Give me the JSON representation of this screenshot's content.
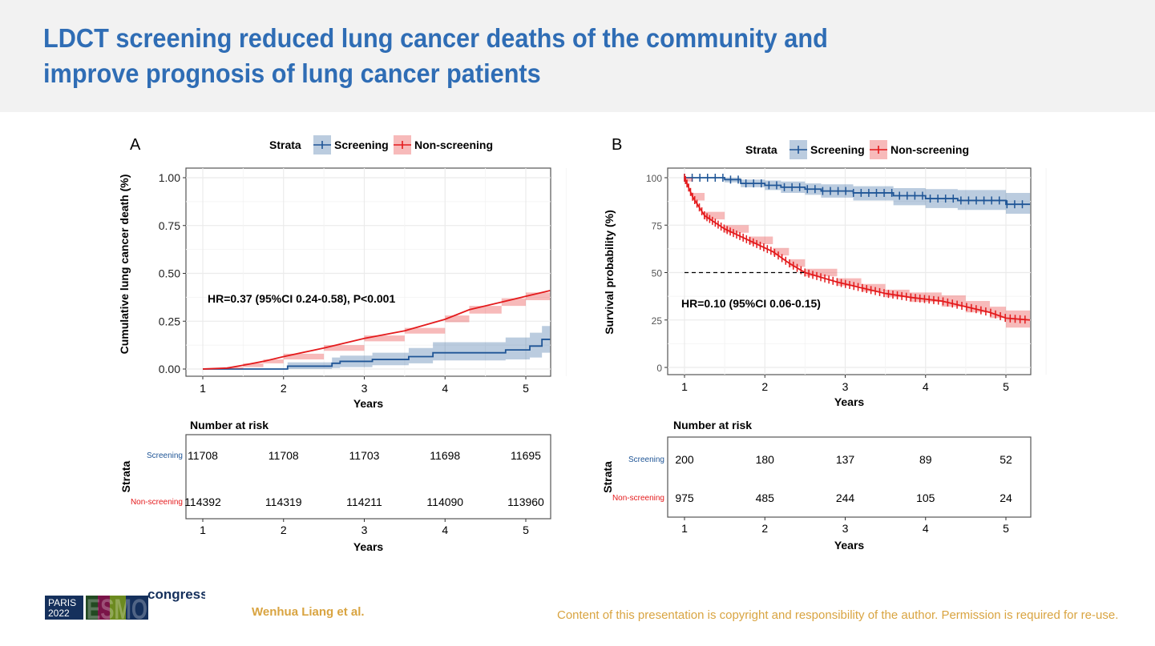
{
  "slide": {
    "title_line1": "LDCT screening reduced lung cancer deaths of the community and",
    "title_line2": "improve prognosis of lung cancer patients",
    "author": "Wenhua Liang et al.",
    "copyright": "Content of this presentation is copyright and responsibility of the author. Permission is required for re-use.",
    "logo": {
      "city": "PARIS",
      "year": "2022",
      "brand": "ESMO",
      "suffix": "congress"
    }
  },
  "colors": {
    "screening": "#1f5596",
    "non_screening": "#e41a1c",
    "title": "#2f6db5",
    "footer": "#d9a441"
  },
  "chart_data": [
    {
      "panel": "A",
      "type": "line",
      "step": true,
      "legend_title": "Strata",
      "legend_position": "top",
      "xlabel": "Years",
      "ylabel": "Cumulative lung cancer death (%)",
      "xlim": [
        0.8,
        5.3
      ],
      "ylim": [
        -0.03,
        1.05
      ],
      "xticks": [
        "1",
        "2",
        "3",
        "4",
        "5"
      ],
      "yticks": [
        "0.00",
        "0.25",
        "0.50",
        "0.75",
        "1.00"
      ],
      "grid": true,
      "annotation": "HR=0.37 (95%CI 0.24-0.58), P<0.001",
      "series": [
        {
          "name": "Screening",
          "color": "#1f5596",
          "x": [
            1,
            2.05,
            2.6,
            2.7,
            3.1,
            3.55,
            3.85,
            4.75,
            5.05,
            5.2,
            5.3
          ],
          "y": [
            0,
            0.015,
            0.03,
            0.04,
            0.05,
            0.065,
            0.085,
            0.1,
            0.12,
            0.155,
            0.155
          ],
          "lower": [
            0,
            0,
            0.005,
            0.01,
            0.02,
            0.03,
            0.045,
            0.05,
            0.06,
            0.085,
            0.085
          ],
          "upper": [
            0,
            0.035,
            0.06,
            0.07,
            0.085,
            0.11,
            0.14,
            0.165,
            0.19,
            0.225,
            0.225
          ]
        },
        {
          "name": "Non-screening",
          "color": "#e41a1c",
          "x": [
            1,
            1.3,
            1.5,
            1.75,
            2,
            2.5,
            3,
            3.5,
            4,
            4.3,
            4.7,
            5,
            5.3
          ],
          "y": [
            0,
            0.005,
            0.02,
            0.04,
            0.065,
            0.11,
            0.16,
            0.2,
            0.26,
            0.31,
            0.35,
            0.38,
            0.41
          ],
          "lower": [
            0,
            0,
            0.01,
            0.03,
            0.05,
            0.095,
            0.145,
            0.185,
            0.245,
            0.29,
            0.33,
            0.36,
            0.385
          ],
          "upper": [
            0,
            0.01,
            0.03,
            0.05,
            0.08,
            0.125,
            0.175,
            0.215,
            0.28,
            0.33,
            0.37,
            0.4,
            0.44
          ]
        }
      ],
      "risk_table": {
        "title": "Number at risk",
        "ylabel": "Strata",
        "xlabel": "Years",
        "times": [
          "1",
          "2",
          "3",
          "4",
          "5"
        ],
        "rows": [
          {
            "label": "Screening",
            "values": [
              "11708",
              "11708",
              "11703",
              "11698",
              "11695"
            ]
          },
          {
            "label": "Non-screening",
            "values": [
              "114392",
              "114319",
              "114211",
              "114090",
              "113960"
            ]
          }
        ]
      }
    },
    {
      "panel": "B",
      "type": "line",
      "step": true,
      "legend_title": "Strata",
      "legend_position": "top",
      "xlabel": "Years",
      "ylabel": "Survival probability (%)",
      "xlim": [
        0.8,
        5.3
      ],
      "ylim": [
        -2,
        105
      ],
      "xticks": [
        "1",
        "2",
        "3",
        "4",
        "5"
      ],
      "yticks": [
        "0",
        "25",
        "50",
        "75",
        "100"
      ],
      "grid": true,
      "annotation": "HR=0.10 (95%CI 0.06-0.15)",
      "median_line": {
        "y": 50,
        "x_end": 2.5
      },
      "series": [
        {
          "name": "Screening",
          "color": "#1f5596",
          "x": [
            1,
            1.5,
            1.7,
            2.0,
            2.2,
            2.5,
            2.7,
            3.1,
            3.6,
            4.0,
            4.4,
            5.0,
            5.3
          ],
          "y": [
            100,
            99,
            97,
            96,
            95,
            94,
            93,
            92,
            90.5,
            89,
            88,
            86,
            86
          ],
          "lower": [
            100,
            97.5,
            95,
            93.5,
            92,
            91,
            89.5,
            88,
            85.5,
            84,
            83,
            81,
            81
          ],
          "upper": [
            100,
            100,
            99,
            98.5,
            98,
            97,
            96.5,
            95.5,
            94.5,
            94,
            93.5,
            92,
            92
          ]
        },
        {
          "name": "Non-screening",
          "color": "#e41a1c",
          "x": [
            1,
            1.1,
            1.25,
            1.5,
            1.8,
            2.1,
            2.3,
            2.5,
            2.9,
            3.2,
            3.5,
            3.8,
            4.2,
            4.5,
            4.8,
            5.0,
            5.3
          ],
          "y": [
            100,
            90,
            80,
            73,
            67,
            61,
            55,
            50,
            45,
            42,
            39,
            37,
            35,
            32,
            29,
            26,
            25
          ],
          "lower": [
            98,
            88,
            78,
            71,
            65,
            59,
            53,
            48,
            43,
            40,
            37,
            34.5,
            32,
            29,
            26,
            21,
            20
          ],
          "upper": [
            100,
            92,
            82,
            75,
            69,
            63,
            57,
            52,
            47,
            44,
            41,
            39.5,
            38,
            35,
            32,
            30,
            30
          ]
        }
      ],
      "risk_table": {
        "title": "Number at risk",
        "ylabel": "Strata",
        "xlabel": "Years",
        "times": [
          "1",
          "2",
          "3",
          "4",
          "5"
        ],
        "rows": [
          {
            "label": "Screening",
            "values": [
              "200",
              "180",
              "137",
              "89",
              "52"
            ]
          },
          {
            "label": "Non-screening",
            "values": [
              "975",
              "485",
              "244",
              "105",
              "24"
            ]
          }
        ]
      }
    }
  ]
}
